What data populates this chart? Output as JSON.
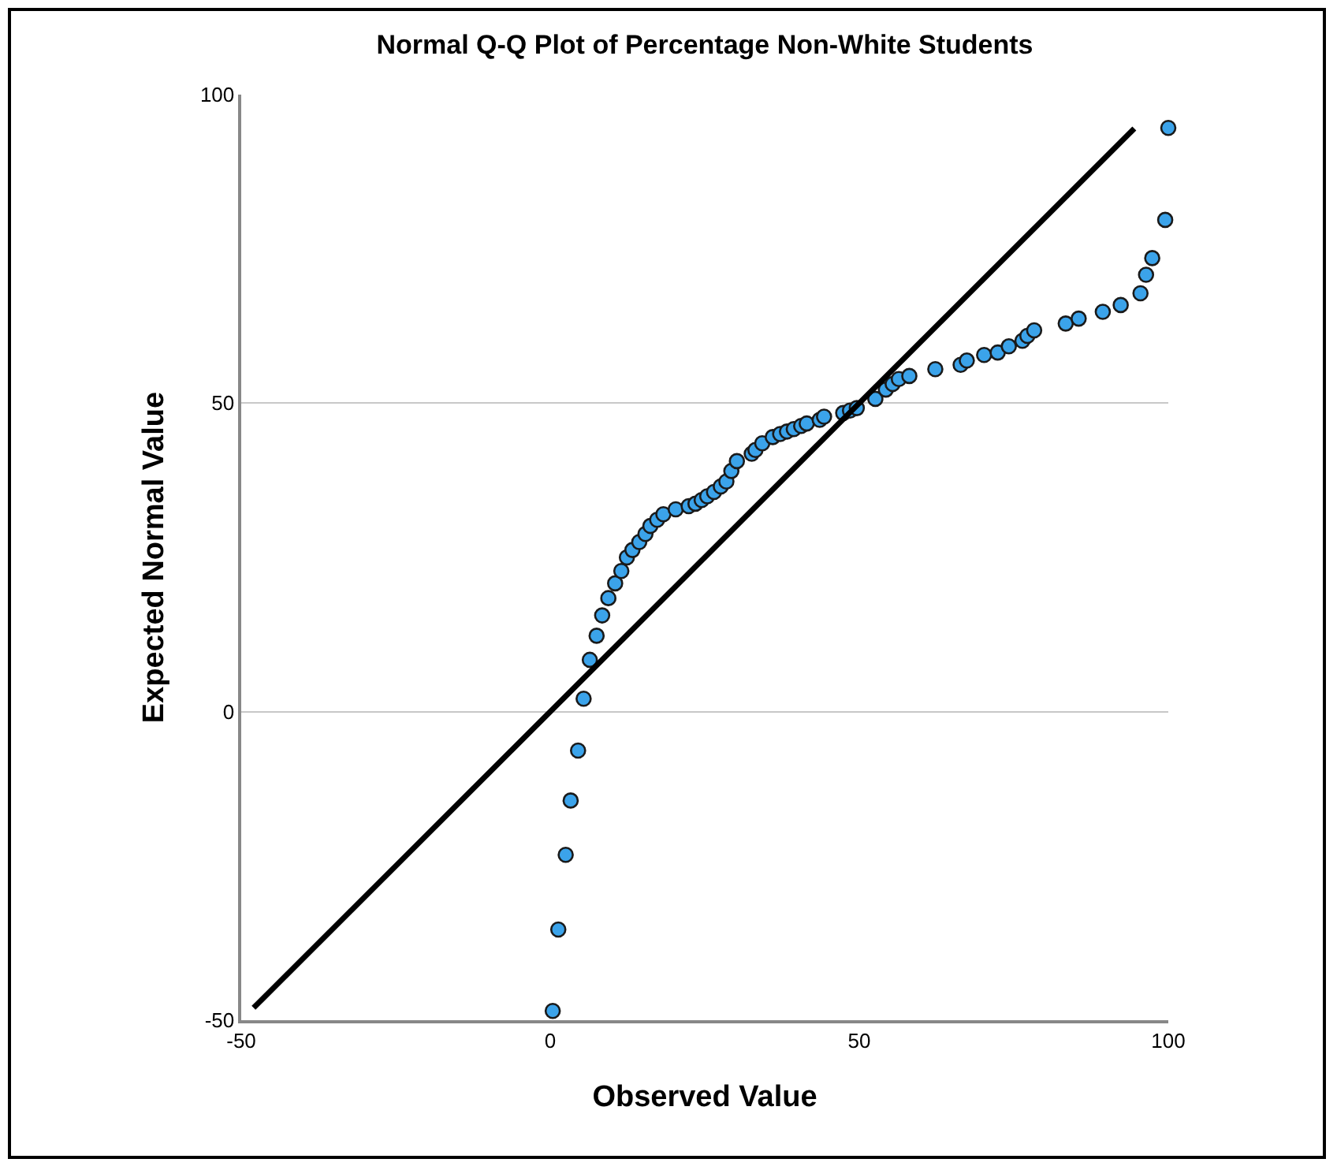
{
  "chart_data": {
    "type": "scatter",
    "title": "Normal Q-Q Plot of Percentage Non-White Students",
    "xlabel": "Observed Value",
    "ylabel": "Expected Normal Value",
    "xlim": [
      -50,
      100
    ],
    "xticks": [
      -50,
      0,
      50,
      100
    ],
    "ylim": [
      -50,
      100
    ],
    "yticks": [
      -50,
      0,
      50,
      100
    ],
    "grid": "y",
    "marker": "circle",
    "series": [
      {
        "color": "#3ba3ea",
        "x": [
          0.4,
          1.3,
          2.5,
          3.3,
          4.5,
          5.4,
          6.4,
          7.5,
          8.4,
          9.4,
          10.5,
          11.5,
          12.4,
          13.3,
          14.4,
          15.4,
          16.2,
          17.3,
          18.3,
          20.3,
          22.4,
          23.5,
          24.5,
          25.4,
          26.5,
          27.6,
          28.5,
          29.3,
          30.2,
          32.6,
          33.2,
          34.3,
          36.0,
          37.2,
          38.3,
          39.4,
          40.6,
          41.5,
          43.6,
          44.3,
          47.4,
          48.5,
          49.6,
          52.6,
          54.3,
          55.4,
          56.4,
          58.1,
          62.3,
          66.4,
          67.4,
          70.2,
          72.4,
          74.2,
          76.4,
          77.2,
          78.3,
          83.4,
          85.5,
          89.4,
          92.3,
          95.5,
          96.4,
          97.4,
          99.5,
          100
        ],
        "values": [
          -48.5,
          -35.3,
          -23.2,
          -14.4,
          -6.3,
          2.1,
          8.4,
          12.3,
          15.6,
          18.4,
          20.8,
          22.8,
          25.0,
          26.2,
          27.5,
          28.8,
          30.1,
          31.1,
          32.0,
          32.8,
          33.3,
          33.7,
          34.3,
          34.9,
          35.6,
          36.5,
          37.3,
          39.0,
          40.6,
          41.8,
          42.4,
          43.5,
          44.5,
          45.0,
          45.4,
          45.8,
          46.3,
          46.7,
          47.3,
          47.8,
          48.4,
          48.8,
          49.2,
          50.7,
          52.2,
          53.1,
          53.9,
          54.4,
          55.5,
          56.2,
          56.9,
          57.8,
          58.2,
          59.2,
          60.1,
          60.9,
          61.8,
          62.9,
          63.7,
          64.8,
          65.9,
          67.8,
          70.8,
          73.5,
          79.7,
          94.6
        ]
      },
      {
        "type": "line",
        "color": "#000000",
        "marker": "none",
        "line_style": "solid",
        "x": [
          -48,
          94.5
        ],
        "values": [
          -48,
          94.5
        ]
      }
    ]
  }
}
